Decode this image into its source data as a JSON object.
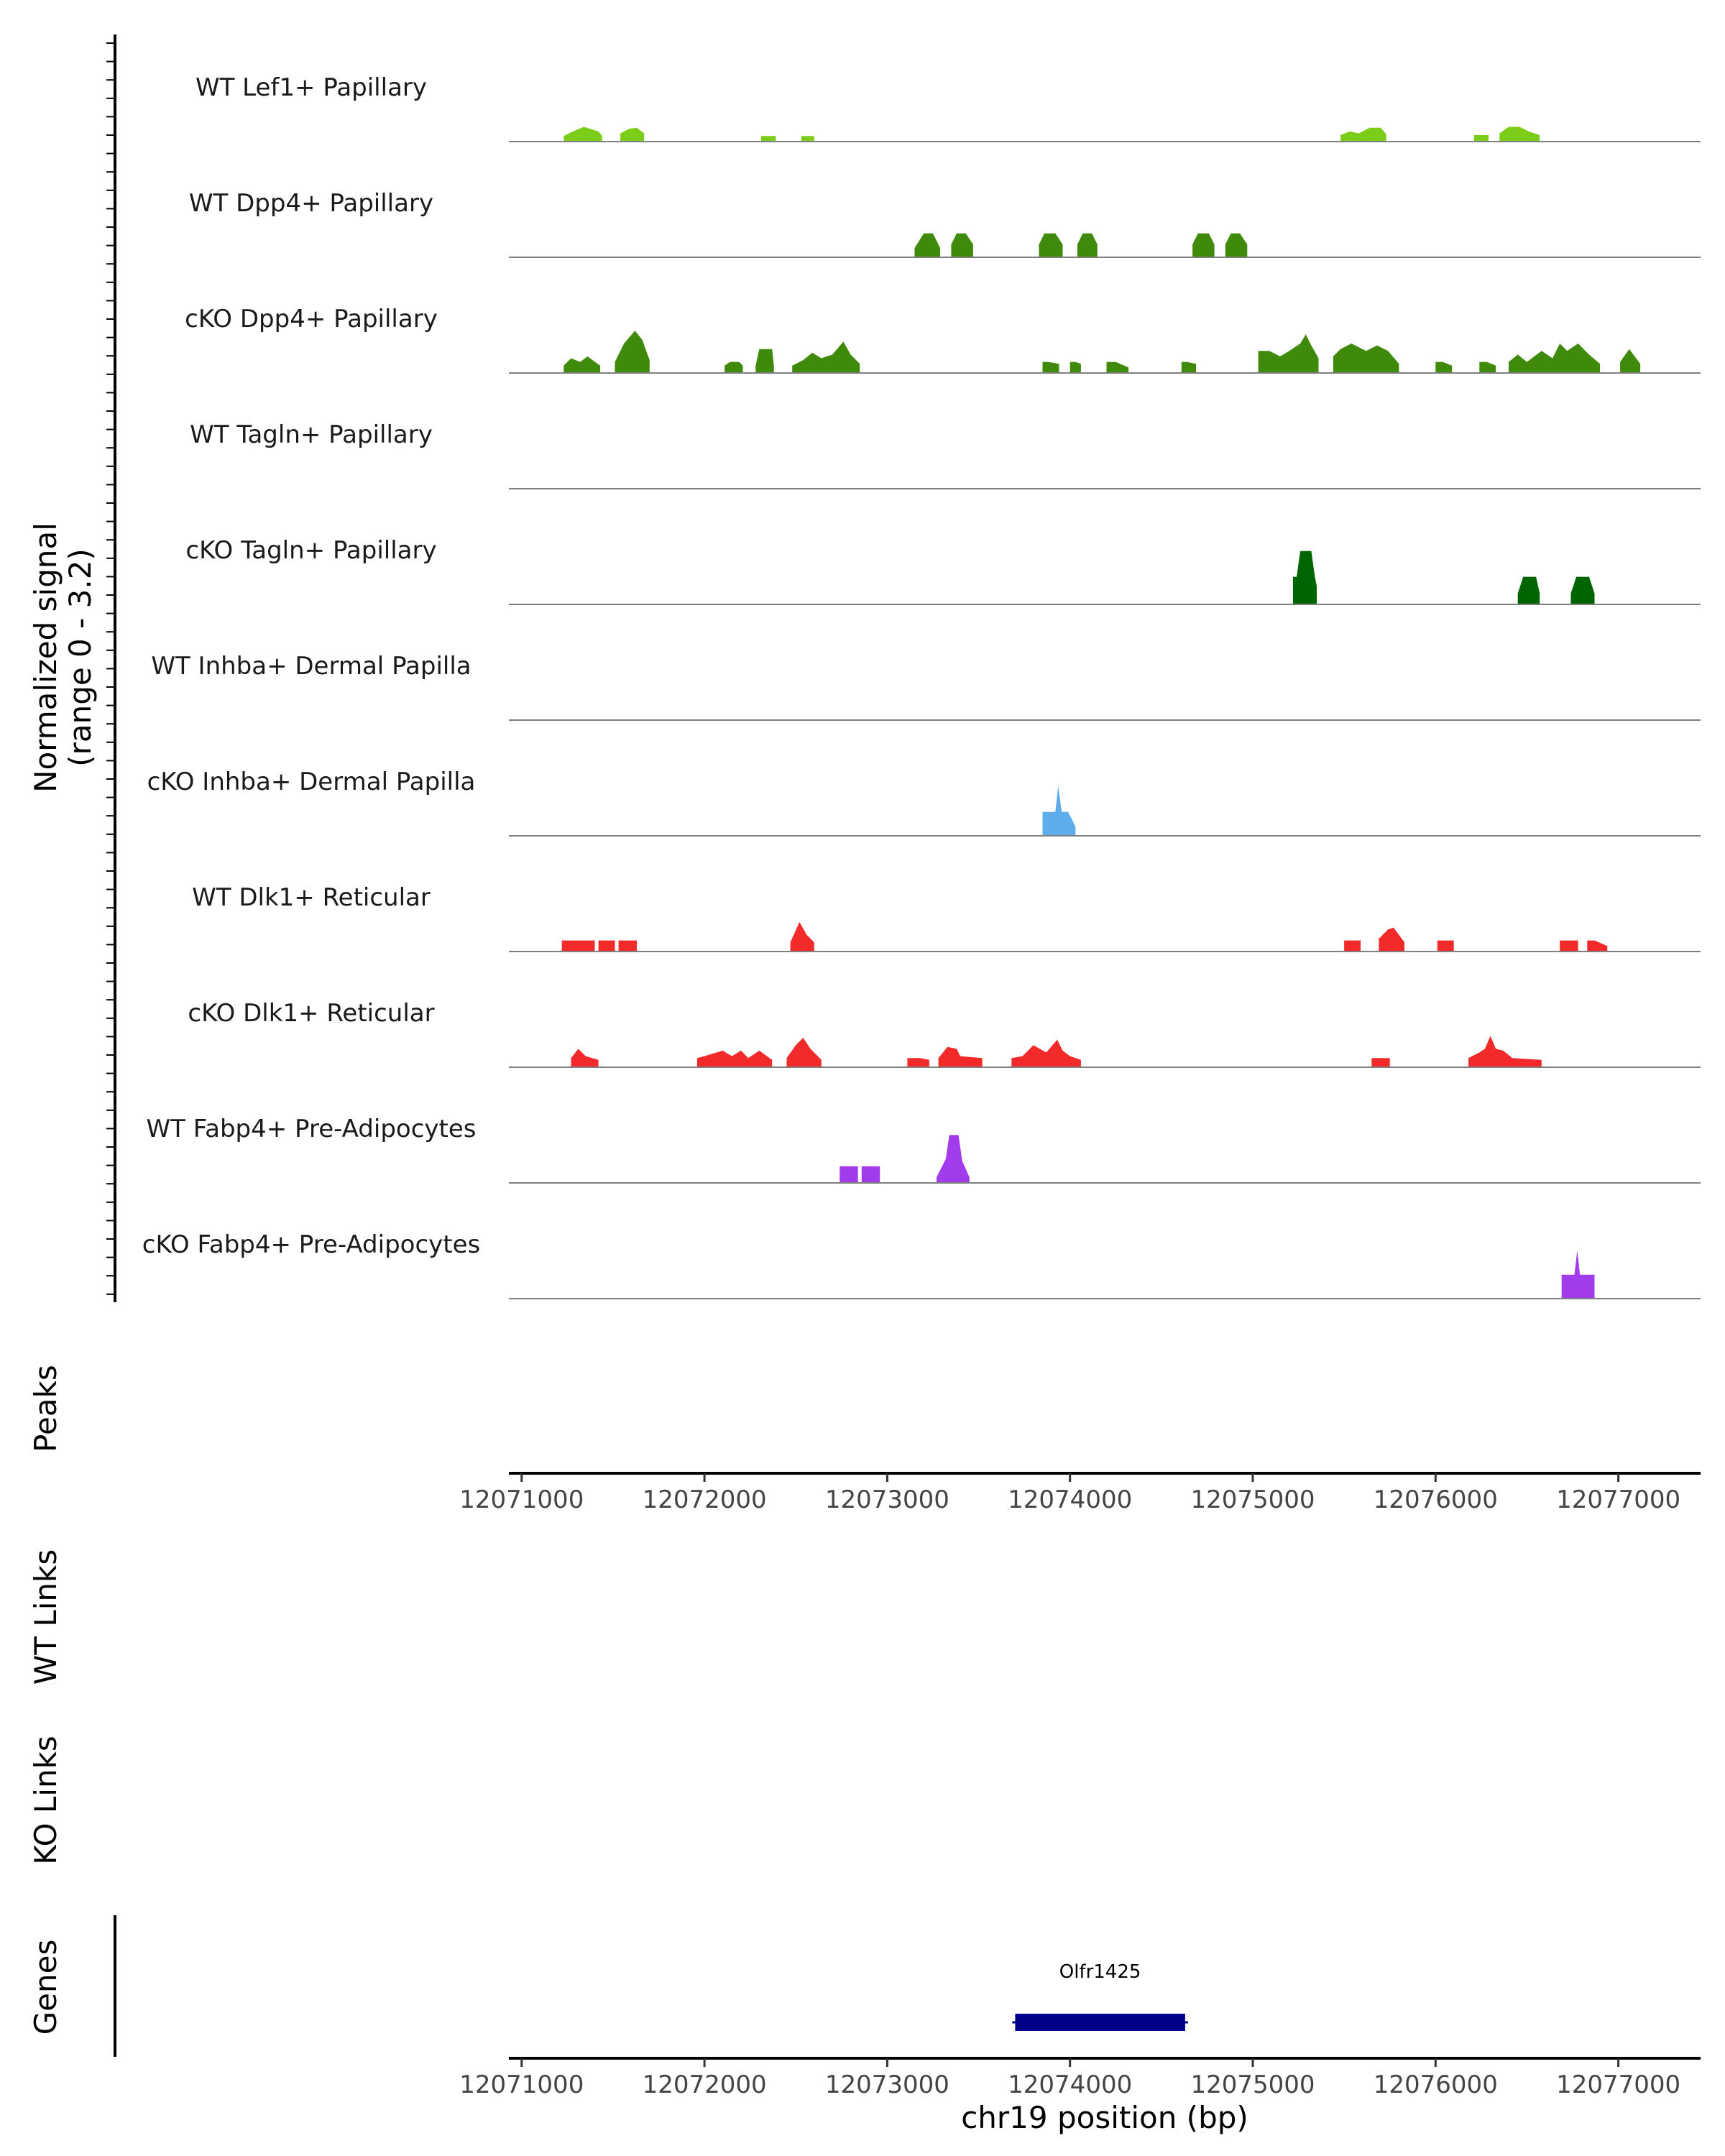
{
  "chart_data": {
    "type": "area",
    "title": "",
    "xlabel": "chr19 position (bp)",
    "ylabel": "Normalized signal (range 0 - 3.2)",
    "ylabel_lines": [
      "Normalized signal",
      "(range 0 - 3.2)"
    ],
    "ylim": [
      0,
      3.2
    ],
    "xlim": [
      12070930,
      12077450
    ],
    "x_ticks": [
      12071000,
      12072000,
      12073000,
      12074000,
      12075000,
      12076000,
      12077000
    ],
    "x_tick_labels": [
      "12071000",
      "12072000",
      "12073000",
      "12074000",
      "12075000",
      "12076000",
      "12077000"
    ],
    "series": [
      {
        "name": "WT Lef1+ Papillary",
        "color": "#7CCD19",
        "peaks": [
          {
            "x": [
              12071230,
              12071280,
              12071340,
              12071420,
              12071440
            ],
            "y": [
              0.3,
              0.55,
              0.8,
              0.55,
              0.3
            ]
          },
          {
            "x": [
              12071540,
              12071590,
              12071630,
              12071670
            ],
            "y": [
              0.45,
              0.7,
              0.75,
              0.45
            ]
          },
          {
            "x": [
              12072310,
              12072390
            ],
            "y": [
              0.3,
              0.3
            ]
          },
          {
            "x": [
              12072530,
              12072600
            ],
            "y": [
              0.3,
              0.3
            ]
          },
          {
            "x": [
              12075480,
              12075530,
              12075580,
              12075640,
              12075700,
              12075730
            ],
            "y": [
              0.35,
              0.55,
              0.45,
              0.75,
              0.75,
              0.4
            ]
          },
          {
            "x": [
              12076210,
              12076290
            ],
            "y": [
              0.35,
              0.35
            ]
          },
          {
            "x": [
              12076350,
              12076400,
              12076460,
              12076510,
              12076570
            ],
            "y": [
              0.45,
              0.8,
              0.8,
              0.55,
              0.35
            ]
          }
        ]
      },
      {
        "name": "WT Dpp4+ Papillary",
        "color": "#3F8A0A",
        "peaks": [
          {
            "x": [
              12073150,
              12073200,
              12073250,
              12073290
            ],
            "y": [
              0.5,
              1.3,
              1.3,
              0.5
            ]
          },
          {
            "x": [
              12073350,
              12073380,
              12073430,
              12073470
            ],
            "y": [
              0.7,
              1.3,
              1.3,
              0.7
            ]
          },
          {
            "x": [
              12073830,
              12073860,
              12073920,
              12073960
            ],
            "y": [
              0.7,
              1.3,
              1.3,
              0.7
            ]
          },
          {
            "x": [
              12074040,
              12074070,
              12074120,
              12074150
            ],
            "y": [
              0.7,
              1.3,
              1.3,
              0.7
            ]
          },
          {
            "x": [
              12074670,
              12074700,
              12074760,
              12074790
            ],
            "y": [
              0.7,
              1.3,
              1.3,
              0.7
            ]
          },
          {
            "x": [
              12074850,
              12074880,
              12074930,
              12074970
            ],
            "y": [
              0.7,
              1.3,
              1.3,
              0.7
            ]
          }
        ]
      },
      {
        "name": "cKO Dpp4+ Papillary",
        "color": "#3F8A0A",
        "peaks": [
          {
            "x": [
              12071230,
              12071270,
              12071320,
              12071360,
              12071430
            ],
            "y": [
              0.4,
              0.8,
              0.6,
              0.9,
              0.4
            ]
          },
          {
            "x": [
              12071510,
              12071560,
              12071620,
              12071660,
              12071700
            ],
            "y": [
              0.6,
              1.6,
              2.3,
              1.8,
              0.7
            ]
          },
          {
            "x": [
              12072110,
              12072140,
              12072190,
              12072210
            ],
            "y": [
              0.4,
              0.6,
              0.6,
              0.4
            ]
          },
          {
            "x": [
              12072280,
              12072300,
              12072370,
              12072380
            ],
            "y": [
              0.4,
              1.3,
              1.3,
              0.4
            ]
          },
          {
            "x": [
              12072480,
              12072540,
              12072590,
              12072640,
              12072700,
              12072760,
              12072800,
              12072850
            ],
            "y": [
              0.4,
              0.7,
              1.1,
              0.8,
              1.0,
              1.7,
              1.0,
              0.5
            ]
          },
          {
            "x": [
              12073850,
              12073880,
              12073940
            ],
            "y": [
              0.6,
              0.6,
              0.5
            ]
          },
          {
            "x": [
              12074000,
              12074030,
              12074060
            ],
            "y": [
              0.6,
              0.6,
              0.5
            ]
          },
          {
            "x": [
              12074200,
              12074250,
              12074320
            ],
            "y": [
              0.6,
              0.6,
              0.3
            ]
          },
          {
            "x": [
              12074610,
              12074640,
              12074690
            ],
            "y": [
              0.6,
              0.6,
              0.5
            ]
          },
          {
            "x": [
              12075030,
              12075090,
              12075150,
              12075200,
              12075260,
              12075290,
              12075320,
              12075360
            ],
            "y": [
              1.2,
              1.2,
              0.9,
              1.2,
              1.6,
              2.1,
              1.5,
              0.8
            ]
          },
          {
            "x": [
              12075440,
              12075480,
              12075540,
              12075620,
              12075680,
              12075740,
              12075800
            ],
            "y": [
              0.9,
              1.3,
              1.6,
              1.2,
              1.5,
              1.2,
              0.5
            ]
          },
          {
            "x": [
              12076000,
              12076040,
              12076090
            ],
            "y": [
              0.6,
              0.6,
              0.4
            ]
          },
          {
            "x": [
              12076240,
              12076280,
              12076330
            ],
            "y": [
              0.6,
              0.6,
              0.4
            ]
          },
          {
            "x": [
              12076400,
              12076450,
              12076500,
              12076580,
              12076640,
              12076680,
              12076720,
              12076780,
              12076840,
              12076900
            ],
            "y": [
              0.6,
              1.0,
              0.6,
              1.2,
              0.8,
              1.6,
              1.2,
              1.6,
              1.0,
              0.5
            ]
          },
          {
            "x": [
              12077010,
              12077060,
              12077120
            ],
            "y": [
              0.6,
              1.3,
              0.5
            ]
          }
        ]
      },
      {
        "name": "WT Tagln+ Papillary",
        "color": "#006400",
        "peaks": []
      },
      {
        "name": "cKO Tagln+ Papillary",
        "color": "#006400",
        "peaks": [
          {
            "x": [
              12075220,
              12075240,
              12075260,
              12075320,
              12075340,
              12075350
            ],
            "y": [
              1.5,
              1.5,
              2.9,
              2.9,
              1.5,
              1.0
            ]
          },
          {
            "x": [
              12076450,
              12076480,
              12076550,
              12076570
            ],
            "y": [
              0.6,
              1.5,
              1.5,
              0.6
            ]
          },
          {
            "x": [
              12076740,
              12076770,
              12076840,
              12076870
            ],
            "y": [
              0.6,
              1.5,
              1.5,
              0.6
            ]
          }
        ]
      },
      {
        "name": "WT Inhba+ Dermal Papilla",
        "color": "#5DADEC",
        "peaks": []
      },
      {
        "name": "cKO Inhba+ Dermal Papilla",
        "color": "#5DADEC",
        "peaks": [
          {
            "x": [
              12073850,
              12073860,
              12073920,
              12073935,
              12073955,
              12073990,
              12074030
            ],
            "y": [
              1.3,
              1.3,
              1.3,
              2.7,
              1.3,
              1.3,
              0.5
            ]
          }
        ]
      },
      {
        "name": "WT Dlk1+ Reticular",
        "color": "#F22A2A",
        "peaks": [
          {
            "x": [
              12071220,
              12071400
            ],
            "y": [
              0.6,
              0.6
            ]
          },
          {
            "x": [
              12071420,
              12071510
            ],
            "y": [
              0.6,
              0.6
            ]
          },
          {
            "x": [
              12071530,
              12071630
            ],
            "y": [
              0.6,
              0.6
            ]
          },
          {
            "x": [
              12072470,
              12072520,
              12072560,
              12072600
            ],
            "y": [
              0.5,
              1.6,
              0.9,
              0.5
            ]
          },
          {
            "x": [
              12075500,
              12075590
            ],
            "y": [
              0.6,
              0.6
            ]
          },
          {
            "x": [
              12075690,
              12075740,
              12075770,
              12075800,
              12075830
            ],
            "y": [
              0.7,
              1.2,
              1.3,
              0.9,
              0.5
            ]
          },
          {
            "x": [
              12076010,
              12076100
            ],
            "y": [
              0.6,
              0.6
            ]
          },
          {
            "x": [
              12076680,
              12076780
            ],
            "y": [
              0.6,
              0.6
            ]
          },
          {
            "x": [
              12076830,
              12076870,
              12076940
            ],
            "y": [
              0.6,
              0.6,
              0.3
            ]
          }
        ]
      },
      {
        "name": "cKO Dlk1+ Reticular",
        "color": "#F22A2A",
        "peaks": [
          {
            "x": [
              12071270,
              12071310,
              12071350,
              12071420
            ],
            "y": [
              0.5,
              1.0,
              0.6,
              0.4
            ]
          },
          {
            "x": [
              12071960,
              12072000,
              12072100,
              12072150,
              12072200,
              12072240,
              12072300,
              12072370
            ],
            "y": [
              0.5,
              0.6,
              0.9,
              0.6,
              0.9,
              0.5,
              0.9,
              0.4
            ]
          },
          {
            "x": [
              12072450,
              12072500,
              12072540,
              12072580,
              12072640
            ],
            "y": [
              0.5,
              1.2,
              1.6,
              1.0,
              0.4
            ]
          },
          {
            "x": [
              12073110,
              12073180,
              12073230
            ],
            "y": [
              0.5,
              0.5,
              0.4
            ]
          },
          {
            "x": [
              12073280,
              12073330,
              12073380,
              12073400,
              12073520
            ],
            "y": [
              0.5,
              1.1,
              1.0,
              0.6,
              0.5
            ]
          },
          {
            "x": [
              12073680,
              12073740,
              12073800,
              12073870,
              12073930,
              12073960,
              12074000,
              12074060
            ],
            "y": [
              0.5,
              0.6,
              1.2,
              0.8,
              1.5,
              0.9,
              0.6,
              0.4
            ]
          },
          {
            "x": [
              12075650,
              12075750
            ],
            "y": [
              0.5,
              0.5
            ]
          },
          {
            "x": [
              12076180,
              12076240,
              12076270,
              12076300,
              12076330,
              12076370,
              12076420,
              12076580
            ],
            "y": [
              0.5,
              0.8,
              1.0,
              1.7,
              1.0,
              0.9,
              0.5,
              0.4
            ]
          }
        ]
      },
      {
        "name": "WT Fabp4+ Pre-Adipocytes",
        "color": "#A23BEC",
        "peaks": [
          {
            "x": [
              12072740,
              12072840
            ],
            "y": [
              0.9,
              0.9
            ]
          },
          {
            "x": [
              12072860,
              12072960
            ],
            "y": [
              0.9,
              0.9
            ]
          },
          {
            "x": [
              12073270,
              12073320,
              12073340,
              12073390,
              12073410,
              12073450
            ],
            "y": [
              0.3,
              1.3,
              2.6,
              2.6,
              1.2,
              0.3
            ]
          }
        ]
      },
      {
        "name": "cKO Fabp4+ Pre-Adipocytes",
        "color": "#A23BEC",
        "peaks": [
          {
            "x": [
              12076690,
              12076760,
              12076775,
              12076790,
              12076870
            ],
            "y": [
              1.3,
              1.3,
              2.6,
              1.3,
              1.3
            ]
          }
        ]
      }
    ],
    "bottom_tracks": {
      "peaks_label": "Peaks",
      "wt_links_label": "WT Links",
      "ko_links_label": "KO Links",
      "genes_label": "Genes"
    },
    "genes": [
      {
        "name": "Olfr1425",
        "start": 12073700,
        "end": 12074630,
        "color": "#00008B"
      }
    ]
  }
}
